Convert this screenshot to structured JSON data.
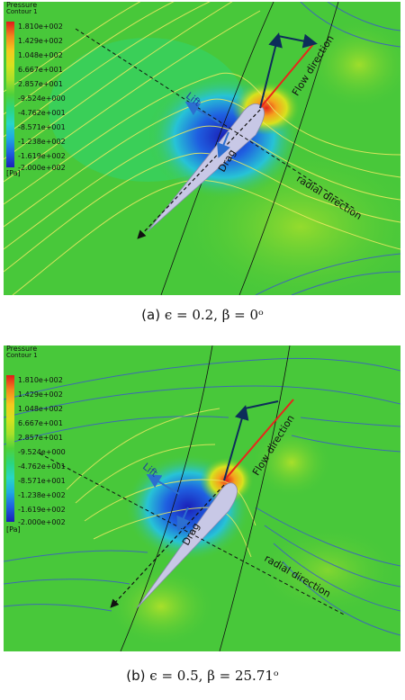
{
  "colors": {
    "background": "#48c83a",
    "low_pressure": "#1a1fb8",
    "high_pressure": "#e8251b",
    "streamline": "#e8e860",
    "streamline_far": "#3c5ac8",
    "airfoil": "#c8c8e6",
    "flow_vector": "#e8251b",
    "resultant_vector": "#0d2d5a"
  },
  "legend": {
    "title": "Pressure",
    "subtitle": "Contour 1",
    "unit": "[Pa]",
    "levels": [
      "1.810e+002",
      "1.429e+002",
      "1.048e+002",
      "6.667e+001",
      "2.857e+001",
      "-9.524e+000",
      "-4.762e+001",
      "-8.571e+001",
      "-1.238e+002",
      "-1.619e+002",
      "-2.000e+002"
    ],
    "colorscale": [
      "#e21a1a",
      "#f2861c",
      "#f5c91e",
      "#d7e21e",
      "#a8e02a",
      "#4fd13a",
      "#2ad67f",
      "#27d6c7",
      "#1fa8e2",
      "#1f5fe0",
      "#1a1fb8"
    ]
  },
  "panels": [
    {
      "id": "a",
      "labels": {
        "lift": "Lift",
        "drag": "Drag",
        "flow": "Flow direction",
        "radial": "radial direction"
      },
      "caption": {
        "tag": "(a)",
        "text": "ϵ = 0.2, β = 0ᵒ"
      }
    },
    {
      "id": "b",
      "labels": {
        "lift": "Lift",
        "drag": "Drag",
        "flow": "Flow direction",
        "radial": "radial direction"
      },
      "caption": {
        "tag": "(b)",
        "text": "ϵ = 0.5, β = 25.71ᵒ"
      }
    }
  ]
}
